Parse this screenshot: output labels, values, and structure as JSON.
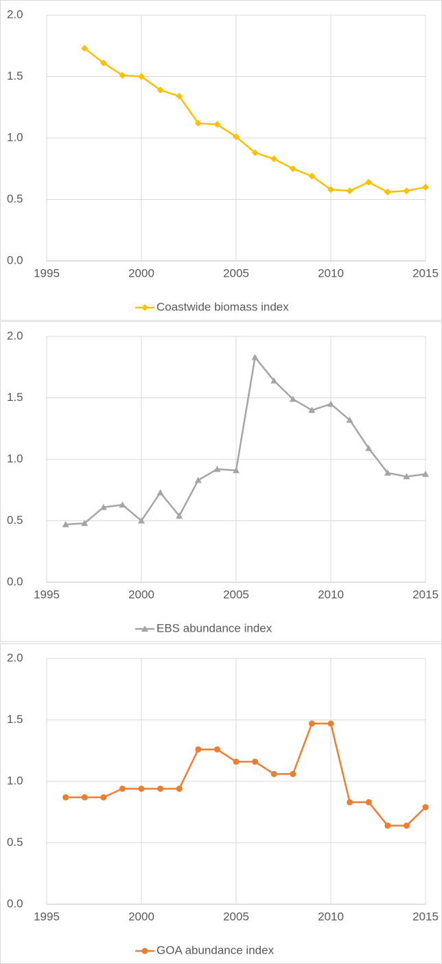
{
  "chart_data": [
    {
      "type": "line",
      "x": [
        1997,
        1998,
        1999,
        2000,
        2001,
        2002,
        2003,
        2004,
        2005,
        2006,
        2007,
        2008,
        2009,
        2010,
        2011,
        2012,
        2013,
        2014,
        2015
      ],
      "series": [
        {
          "name": "Coastwide biomass index",
          "color": "#FFC000",
          "marker": "diamond",
          "values": [
            1.73,
            1.61,
            1.51,
            1.5,
            1.39,
            1.34,
            1.12,
            1.11,
            1.01,
            0.88,
            0.83,
            0.75,
            0.69,
            0.58,
            0.57,
            0.64,
            0.56,
            0.57,
            0.6
          ]
        }
      ],
      "xlim": [
        1995,
        2015
      ],
      "xticks": [
        1995,
        2000,
        2005,
        2010,
        2015
      ],
      "ylim": [
        0,
        2
      ],
      "yticks": [
        {
          "value": 0,
          "label": "0.0"
        },
        0.5,
        {
          "value": 1,
          "label": "1.0"
        },
        1.5,
        {
          "value": 2,
          "label": "2.0"
        }
      ],
      "grid": true,
      "legend": "bottom"
    },
    {
      "type": "line",
      "x": [
        1996,
        1997,
        1998,
        1999,
        2000,
        2001,
        2002,
        2003,
        2004,
        2005,
        2006,
        2007,
        2008,
        2009,
        2010,
        2011,
        2012,
        2013,
        2014,
        2015
      ],
      "series": [
        {
          "name": "EBS abundance index",
          "color": "#A5A5A5",
          "marker": "triangle",
          "values": [
            0.47,
            0.48,
            0.61,
            0.63,
            0.5,
            0.73,
            0.54,
            0.83,
            0.92,
            0.91,
            1.83,
            1.64,
            1.49,
            1.4,
            1.45,
            1.32,
            1.09,
            0.89,
            0.86,
            0.88
          ]
        }
      ],
      "xlim": [
        1995,
        2015
      ],
      "xticks": [
        1995,
        2000,
        2005,
        2010,
        2015
      ],
      "ylim": [
        0,
        2
      ],
      "yticks": [
        {
          "value": 0,
          "label": "0.0"
        },
        0.5,
        {
          "value": 1,
          "label": "1.0"
        },
        1.5,
        {
          "value": 2,
          "label": "2.0"
        }
      ],
      "grid": true,
      "legend": "bottom"
    },
    {
      "type": "line",
      "x": [
        1996,
        1997,
        1998,
        1999,
        2000,
        2001,
        2002,
        2003,
        2004,
        2005,
        2006,
        2007,
        2008,
        2009,
        2010,
        2011,
        2012,
        2013,
        2014,
        2015
      ],
      "series": [
        {
          "name": "GOA abundance index",
          "color": "#ED7D31",
          "marker": "circle",
          "values": [
            0.87,
            0.87,
            0.87,
            0.94,
            0.94,
            0.94,
            0.94,
            1.26,
            1.26,
            1.16,
            1.16,
            1.06,
            1.06,
            1.47,
            1.47,
            0.83,
            0.83,
            0.64,
            0.64,
            0.79
          ]
        }
      ],
      "xlim": [
        1995,
        2015
      ],
      "xticks": [
        1995,
        2000,
        2005,
        2010,
        2015
      ],
      "ylim": [
        0,
        2
      ],
      "yticks": [
        {
          "value": 0,
          "label": "0.0"
        },
        0.5,
        {
          "value": 1,
          "label": "1.0"
        },
        1.5,
        {
          "value": 2,
          "label": "2.0"
        }
      ],
      "grid": true,
      "legend": "bottom"
    }
  ]
}
